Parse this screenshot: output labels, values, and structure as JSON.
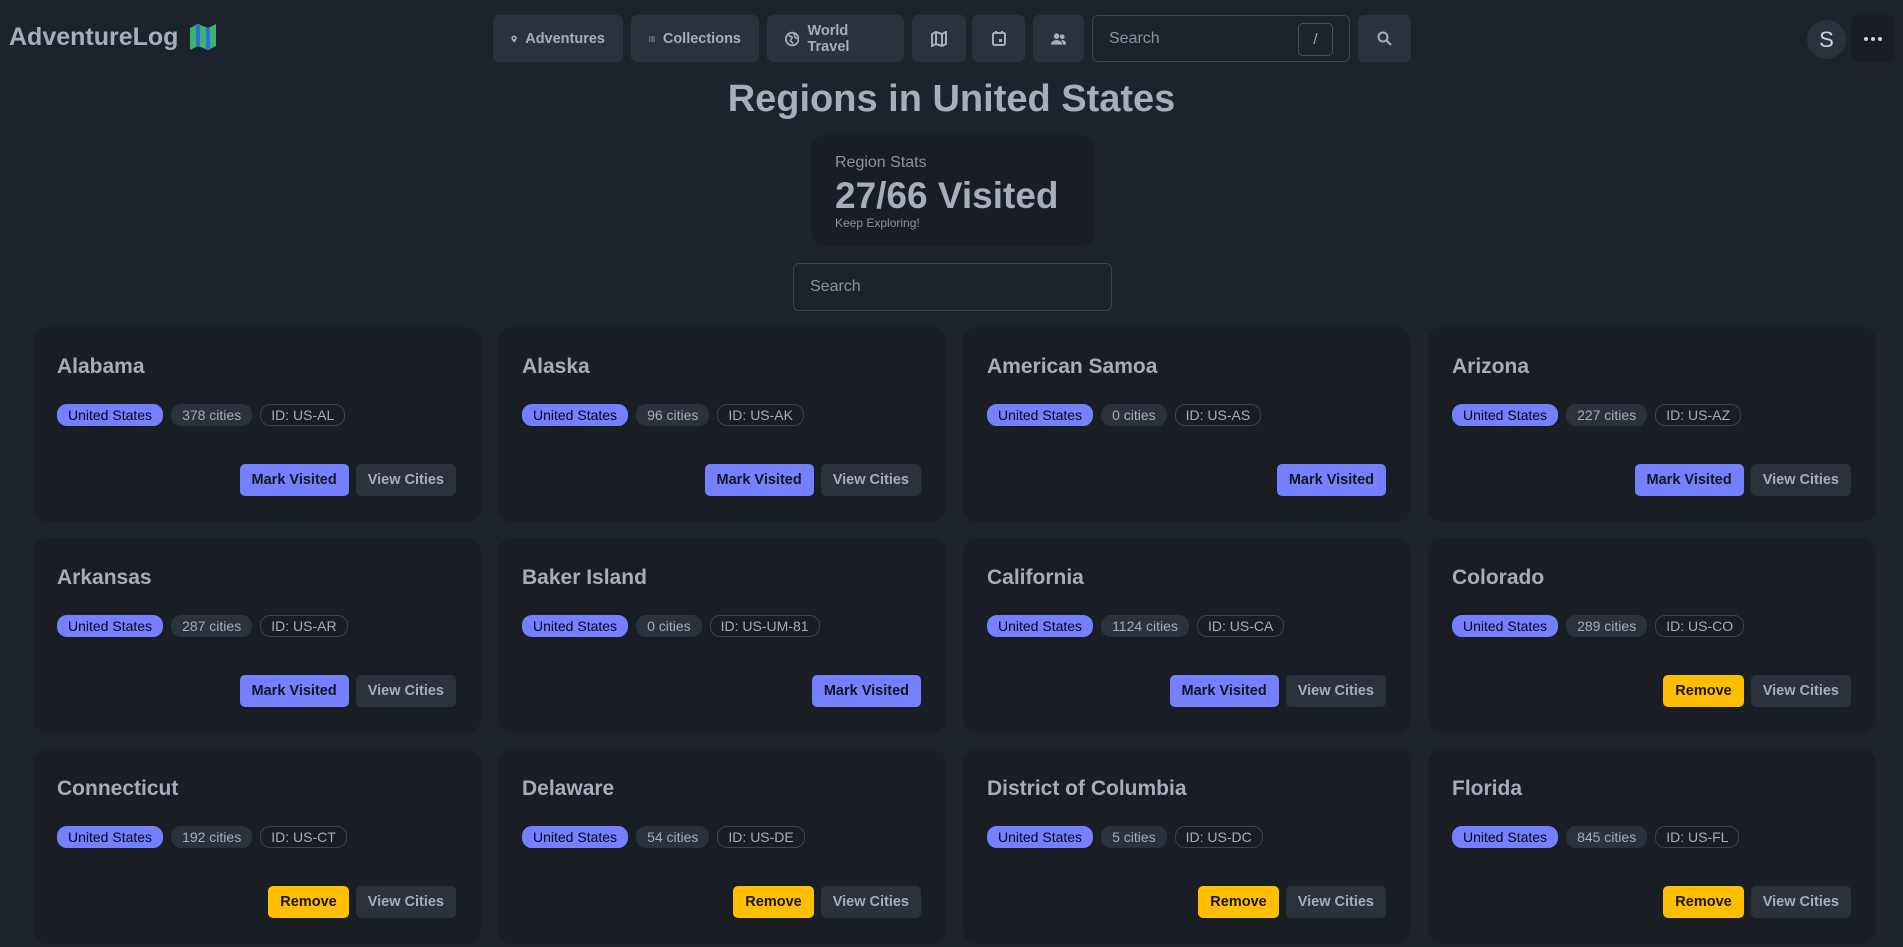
{
  "nav": {
    "brand": "AdventureLog",
    "items": [
      "Adventures",
      "Collections",
      "World Travel"
    ],
    "search_placeholder": "Search",
    "shortcut": "/",
    "avatar": "S"
  },
  "page": {
    "title": "Regions in United States",
    "stats": {
      "title": "Region Stats",
      "value": "27/66 Visited",
      "desc": "Keep Exploring!"
    },
    "search_placeholder": "Search"
  },
  "regions": [
    {
      "name": "Alabama",
      "country": "United States",
      "cities": "378 cities",
      "id": "ID: US-AL",
      "actions": [
        {
          "label": "Mark Visited",
          "color": "#7480ff"
        },
        {
          "label": "View Cities",
          "color": "#2a323c"
        }
      ]
    },
    {
      "name": "Alaska",
      "country": "United States",
      "cities": "96 cities",
      "id": "ID: US-AK",
      "actions": [
        {
          "label": "Mark Visited",
          "color": "#7480ff"
        },
        {
          "label": "View Cities",
          "color": "#2a323c"
        }
      ]
    },
    {
      "name": "American Samoa",
      "country": "United States",
      "cities": "0 cities",
      "id": "ID: US-AS",
      "actions": [
        {
          "label": "Mark Visited",
          "color": "#7480ff"
        }
      ]
    },
    {
      "name": "Arizona",
      "country": "United States",
      "cities": "227 cities",
      "id": "ID: US-AZ",
      "actions": [
        {
          "label": "Mark Visited",
          "color": "#7480ff"
        },
        {
          "label": "View Cities",
          "color": "#2a323c"
        }
      ]
    },
    {
      "name": "Arkansas",
      "country": "United States",
      "cities": "287 cities",
      "id": "ID: US-AR",
      "actions": [
        {
          "label": "Mark Visited",
          "color": "#7480ff"
        },
        {
          "label": "View Cities",
          "color": "#2a323c"
        }
      ]
    },
    {
      "name": "Baker Island",
      "country": "United States",
      "cities": "0 cities",
      "id": "ID: US-UM-81",
      "actions": [
        {
          "label": "Mark Visited",
          "color": "#7480ff"
        }
      ]
    },
    {
      "name": "California",
      "country": "United States",
      "cities": "1124 cities",
      "id": "ID: US-CA",
      "actions": [
        {
          "label": "Mark Visited",
          "color": "#7480ff"
        },
        {
          "label": "View Cities",
          "color": "#2a323c"
        }
      ]
    },
    {
      "name": "Colorado",
      "country": "United States",
      "cities": "289 cities",
      "id": "ID: US-CO",
      "actions": [
        {
          "label": "Remove",
          "color": "#ffbe00"
        },
        {
          "label": "View Cities",
          "color": "#2a323c"
        }
      ]
    },
    {
      "name": "Connecticut",
      "country": "United States",
      "cities": "192 cities",
      "id": "ID: US-CT",
      "actions": [
        {
          "label": "Remove",
          "color": "#ffbe00"
        },
        {
          "label": "View Cities",
          "color": "#2a323c"
        }
      ]
    },
    {
      "name": "Delaware",
      "country": "United States",
      "cities": "54 cities",
      "id": "ID: US-DE",
      "actions": [
        {
          "label": "Remove",
          "color": "#ffbe00"
        },
        {
          "label": "View Cities",
          "color": "#2a323c"
        }
      ]
    },
    {
      "name": "District of Columbia",
      "country": "United States",
      "cities": "5 cities",
      "id": "ID: US-DC",
      "actions": [
        {
          "label": "Remove",
          "color": "#ffbe00"
        },
        {
          "label": "View Cities",
          "color": "#2a323c"
        }
      ]
    },
    {
      "name": "Florida",
      "country": "United States",
      "cities": "845 cities",
      "id": "ID: US-FL",
      "actions": [
        {
          "label": "Remove",
          "color": "#ffbe00"
        },
        {
          "label": "View Cities",
          "color": "#2a323c"
        }
      ]
    }
  ]
}
